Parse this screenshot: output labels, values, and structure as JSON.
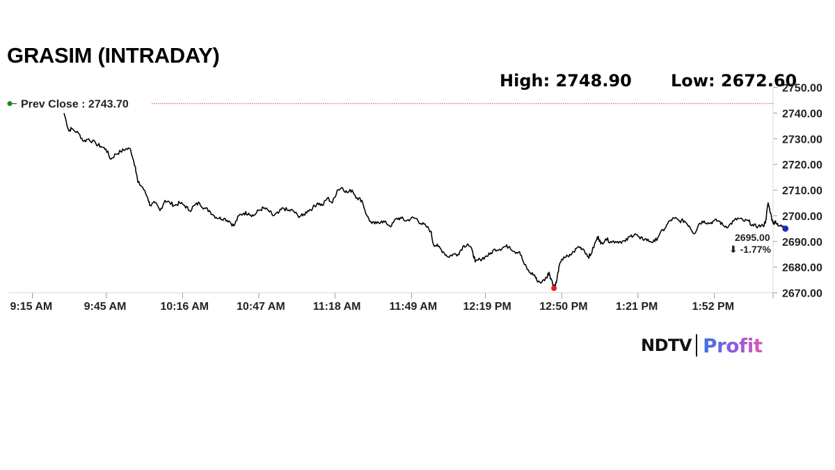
{
  "title": "GRASIM (INTRADAY)",
  "stats": {
    "high_label": "High: 2748.90",
    "low_label": "Low: 2672.60"
  },
  "prev_close": {
    "label": "Prev Close : 2743.70",
    "value": 2743.7
  },
  "last": {
    "price_label": "2695.00",
    "change_label": "⬇ -1.77%",
    "value": 2695.0
  },
  "colors": {
    "line": "#000000",
    "prev_close_line": "#e03a3a",
    "prev_close_dot": "#1a8a1a",
    "low_marker": "#e81c1c",
    "last_marker": "#1530b8",
    "change_text": "#e81c1c"
  },
  "chart_data": {
    "type": "line",
    "title": "GRASIM (INTRADAY)",
    "xlabel": "",
    "ylabel": "",
    "ylim": [
      2670,
      2750
    ],
    "yticks": [
      "2670.00",
      "2680.00",
      "2690.00",
      "2700.00",
      "2710.00",
      "2720.00",
      "2730.00",
      "2740.00",
      "2750.00"
    ],
    "xlim_minutes_from_open": [
      0,
      301
    ],
    "xticks": [
      {
        "label": "9:15 AM",
        "minute": 0
      },
      {
        "label": "9:45 AM",
        "minute": 30
      },
      {
        "label": "10:16 AM",
        "minute": 61
      },
      {
        "label": "10:47 AM",
        "minute": 92
      },
      {
        "label": "11:18 AM",
        "minute": 123
      },
      {
        "label": "11:49 AM",
        "minute": 154
      },
      {
        "label": "12:19 PM",
        "minute": 184
      },
      {
        "label": "12:50 PM",
        "minute": 215
      },
      {
        "label": "1:21 PM",
        "minute": 246
      },
      {
        "label": "1:52 PM",
        "minute": 277
      }
    ],
    "series": [
      {
        "points": [
          [
            13,
            2740
          ],
          [
            15,
            2733
          ],
          [
            16,
            2734
          ],
          [
            19,
            2732
          ],
          [
            21,
            2729
          ],
          [
            23,
            2730
          ],
          [
            26,
            2728
          ],
          [
            28,
            2727
          ],
          [
            30,
            2726
          ],
          [
            32,
            2722
          ],
          [
            34,
            2724
          ],
          [
            36,
            2725
          ],
          [
            38,
            2726
          ],
          [
            40,
            2726
          ],
          [
            42,
            2719
          ],
          [
            43,
            2713
          ],
          [
            45,
            2711
          ],
          [
            47,
            2707
          ],
          [
            48,
            2704
          ],
          [
            50,
            2705
          ],
          [
            52,
            2702
          ],
          [
            54,
            2706
          ],
          [
            56,
            2705
          ],
          [
            58,
            2704
          ],
          [
            60,
            2705
          ],
          [
            62,
            2704
          ],
          [
            64,
            2702
          ],
          [
            66,
            2704
          ],
          [
            68,
            2705
          ],
          [
            70,
            2703
          ],
          [
            72,
            2702
          ],
          [
            74,
            2700
          ],
          [
            76,
            2699
          ],
          [
            78,
            2699
          ],
          [
            80,
            2698
          ],
          [
            82,
            2696
          ],
          [
            84,
            2700
          ],
          [
            86,
            2701
          ],
          [
            88,
            2701
          ],
          [
            90,
            2700
          ],
          [
            92,
            2702
          ],
          [
            94,
            2703
          ],
          [
            96,
            2702
          ],
          [
            98,
            2700
          ],
          [
            100,
            2701
          ],
          [
            102,
            2703
          ],
          [
            104,
            2702
          ],
          [
            106,
            2702
          ],
          [
            108,
            2700
          ],
          [
            110,
            2700
          ],
          [
            112,
            2702
          ],
          [
            114,
            2703
          ],
          [
            116,
            2705
          ],
          [
            118,
            2704
          ],
          [
            120,
            2707
          ],
          [
            122,
            2705
          ],
          [
            124,
            2710
          ],
          [
            126,
            2711
          ],
          [
            128,
            2709
          ],
          [
            130,
            2710
          ],
          [
            132,
            2707
          ],
          [
            134,
            2706
          ],
          [
            136,
            2700
          ],
          [
            138,
            2697
          ],
          [
            140,
            2697
          ],
          [
            142,
            2698
          ],
          [
            144,
            2697
          ],
          [
            146,
            2696
          ],
          [
            148,
            2699
          ],
          [
            150,
            2699
          ],
          [
            152,
            2698
          ],
          [
            154,
            2699
          ],
          [
            156,
            2699
          ],
          [
            158,
            2697
          ],
          [
            160,
            2696
          ],
          [
            162,
            2694
          ],
          [
            163,
            2689
          ],
          [
            165,
            2688
          ],
          [
            167,
            2686
          ],
          [
            169,
            2684
          ],
          [
            171,
            2685
          ],
          [
            173,
            2685
          ],
          [
            175,
            2688
          ],
          [
            177,
            2689
          ],
          [
            179,
            2686
          ],
          [
            180,
            2682
          ],
          [
            182,
            2683
          ],
          [
            184,
            2684
          ],
          [
            186,
            2685
          ],
          [
            188,
            2687
          ],
          [
            190,
            2687
          ],
          [
            192,
            2688
          ],
          [
            194,
            2688
          ],
          [
            196,
            2686
          ],
          [
            198,
            2686
          ],
          [
            200,
            2681
          ],
          [
            202,
            2678
          ],
          [
            204,
            2677
          ],
          [
            205,
            2675
          ],
          [
            207,
            2674
          ],
          [
            209,
            2676
          ],
          [
            210,
            2678
          ],
          [
            211,
            2675
          ],
          [
            212,
            2672.6
          ],
          [
            213,
            2674
          ],
          [
            214,
            2680
          ],
          [
            216,
            2684
          ],
          [
            218,
            2684
          ],
          [
            220,
            2686
          ],
          [
            222,
            2688
          ],
          [
            224,
            2687
          ],
          [
            226,
            2684
          ],
          [
            227,
            2685
          ],
          [
            229,
            2690
          ],
          [
            230,
            2692
          ],
          [
            231,
            2689
          ],
          [
            233,
            2691
          ],
          [
            235,
            2690
          ],
          [
            237,
            2690
          ],
          [
            239,
            2690
          ],
          [
            241,
            2690
          ],
          [
            243,
            2692
          ],
          [
            245,
            2693
          ],
          [
            247,
            2691
          ],
          [
            249,
            2691
          ],
          [
            251,
            2690
          ],
          [
            253,
            2690
          ],
          [
            255,
            2693
          ],
          [
            257,
            2695
          ],
          [
            259,
            2698
          ],
          [
            261,
            2699
          ],
          [
            263,
            2698
          ],
          [
            265,
            2698
          ],
          [
            267,
            2696
          ],
          [
            269,
            2693
          ],
          [
            271,
            2697
          ],
          [
            273,
            2698
          ],
          [
            275,
            2697
          ],
          [
            277,
            2698
          ],
          [
            279,
            2698
          ],
          [
            281,
            2696
          ],
          [
            283,
            2696
          ],
          [
            285,
            2698
          ],
          [
            287,
            2699
          ],
          [
            289,
            2698
          ],
          [
            291,
            2698
          ],
          [
            293,
            2696
          ],
          [
            295,
            2696
          ],
          [
            297,
            2696
          ],
          [
            298,
            2698
          ],
          [
            299,
            2705
          ],
          [
            300,
            2701
          ],
          [
            301,
            2697
          ],
          [
            302,
            2698
          ],
          [
            303,
            2696
          ],
          [
            305,
            2696
          ],
          [
            306,
            2695
          ]
        ]
      }
    ]
  }
}
